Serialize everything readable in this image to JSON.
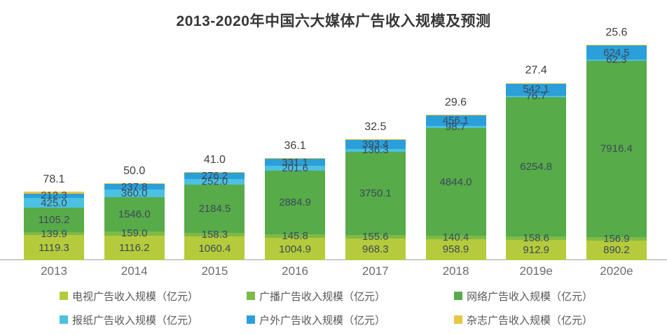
{
  "chart_data": {
    "type": "bar",
    "stacked": true,
    "title": "2013-2020年中国六大媒体广告收入规模及预测",
    "unit": "亿元",
    "categories": [
      "2013",
      "2014",
      "2015",
      "2016",
      "2017",
      "2018",
      "2019e",
      "2020e"
    ],
    "series": [
      {
        "key": "tv",
        "name": "电视广告收入规模（亿元）",
        "color": "#b5cb3b",
        "label_style": "inside",
        "values": [
          1119.3,
          1116.2,
          1060.4,
          1004.9,
          968.3,
          958.9,
          912.9,
          890.2
        ]
      },
      {
        "key": "radio",
        "name": "广播广告收入规模（亿元）",
        "color": "#7eba47",
        "label_style": "inside",
        "values": [
          139.9,
          159.0,
          158.3,
          145.8,
          155.6,
          140.4,
          158.6,
          156.9
        ]
      },
      {
        "key": "network",
        "name": "网络广告收入规模（亿元）",
        "color": "#57ab49",
        "label_style": "inside",
        "values": [
          1105.2,
          1546.0,
          2184.5,
          2884.9,
          3750.1,
          4844.0,
          6254.8,
          7916.4
        ]
      },
      {
        "key": "newspaper",
        "name": "报纸广告收入规模（亿元）",
        "color": "#4cc1e2",
        "label_style": "inside",
        "values": [
          425.0,
          360.0,
          252.0,
          201.6,
          136.3,
          98.7,
          76.7,
          62.3
        ]
      },
      {
        "key": "outdoor",
        "name": "户外广告收入规模（亿元）",
        "color": "#2b9fd9",
        "label_style": "inside",
        "values": [
          212.3,
          237.8,
          276.2,
          331.1,
          393.4,
          456.1,
          542.1,
          624.5
        ]
      },
      {
        "key": "magazine",
        "name": "杂志广告收入规模（亿元）",
        "color": "#e9c643",
        "label_style": "above",
        "values": [
          78.1,
          50.0,
          41.0,
          36.1,
          32.5,
          29.6,
          27.4,
          25.6
        ]
      }
    ],
    "value_decimals": 1,
    "legend_position": "bottom",
    "grid": false,
    "ylim": [
      0,
      9800
    ]
  },
  "style_colors": {
    "title": "#363636",
    "bar_label": "#3b4a57",
    "above_label": "#404040",
    "axis_label": "#6b6b6b",
    "legend_text": "#595959",
    "axis_line": "#a0a0a0",
    "background": "#ffffff"
  }
}
